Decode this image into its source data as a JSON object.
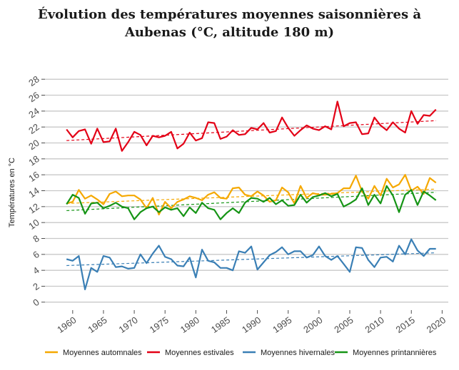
{
  "chart_data": {
    "type": "line",
    "title": "Évolution des températures moyennes saisonnières à Aubenas (°C, altitude 180 m)",
    "title_line1": "Évolution des températures moyennes saisonnières à",
    "title_line2": "Aubenas (°C, altitude 180 m)",
    "ylabel": "Températures en °C",
    "xlabel": "",
    "xlim": [
      1955.5,
      2021
    ],
    "ylim": [
      -1,
      29
    ],
    "xticks": [
      1960,
      1965,
      1970,
      1975,
      1980,
      1985,
      1990,
      1995,
      2000,
      2005,
      2010,
      2015,
      2020
    ],
    "yticks": [
      0,
      2,
      4,
      6,
      8,
      10,
      12,
      14,
      16,
      18,
      20,
      22,
      24,
      26,
      28
    ],
    "grid": "horizontal",
    "legend_position": "bottom",
    "x": [
      1959,
      1960,
      1961,
      1962,
      1963,
      1964,
      1965,
      1966,
      1967,
      1968,
      1969,
      1970,
      1971,
      1972,
      1973,
      1974,
      1975,
      1976,
      1977,
      1978,
      1979,
      1980,
      1981,
      1982,
      1983,
      1984,
      1985,
      1986,
      1987,
      1988,
      1989,
      1990,
      1991,
      1992,
      1993,
      1994,
      1995,
      1996,
      1997,
      1998,
      1999,
      2000,
      2001,
      2002,
      2003,
      2004,
      2005,
      2006,
      2007,
      2008,
      2009,
      2010,
      2011,
      2012,
      2013,
      2014,
      2015,
      2016,
      2017,
      2018,
      2019
    ],
    "series": [
      {
        "name": "Moyennes automnales",
        "color": "#f5a800",
        "values": [
          12.4,
          12.6,
          14.1,
          13.0,
          13.4,
          12.9,
          12.3,
          13.6,
          13.9,
          13.3,
          13.4,
          13.4,
          12.9,
          11.8,
          13.1,
          11.0,
          12.6,
          11.8,
          12.6,
          12.9,
          13.3,
          13.1,
          12.8,
          13.5,
          13.8,
          13.1,
          13.0,
          14.3,
          14.4,
          13.5,
          13.3,
          13.9,
          13.4,
          12.6,
          12.8,
          14.4,
          13.8,
          12.4,
          14.6,
          13.1,
          13.7,
          13.5,
          13.5,
          13.6,
          13.7,
          14.3,
          14.3,
          15.9,
          13.9,
          13.0,
          14.6,
          13.4,
          15.5,
          14.4,
          14.8,
          16.0,
          14.0,
          14.5,
          13.6,
          15.6,
          15.0
        ],
        "trend": [
          12.4,
          14.2
        ]
      },
      {
        "name": "Moyennes estivales",
        "color": "#e30016",
        "values": [
          21.7,
          20.7,
          21.5,
          21.7,
          19.9,
          21.8,
          20.1,
          20.2,
          21.8,
          19.0,
          20.1,
          21.4,
          21.0,
          19.7,
          20.9,
          20.7,
          20.9,
          21.4,
          19.3,
          19.9,
          21.3,
          20.3,
          20.6,
          22.6,
          22.5,
          20.5,
          20.8,
          21.6,
          21.0,
          21.1,
          21.9,
          21.7,
          22.5,
          21.3,
          21.5,
          23.2,
          21.9,
          20.9,
          21.6,
          22.2,
          21.8,
          21.6,
          22.1,
          21.7,
          25.2,
          22.1,
          22.5,
          22.6,
          21.1,
          21.2,
          23.2,
          22.2,
          21.6,
          22.6,
          21.8,
          21.3,
          24.0,
          22.4,
          23.5,
          23.4,
          24.2
        ],
        "trend": [
          20.3,
          22.8
        ]
      },
      {
        "name": "Moyennes hivernales",
        "color": "#3a7fb5",
        "values": [
          5.4,
          5.2,
          5.8,
          1.6,
          4.3,
          3.8,
          5.8,
          5.6,
          4.4,
          4.5,
          4.2,
          4.3,
          6.0,
          4.9,
          6.1,
          7.1,
          5.7,
          5.4,
          4.6,
          4.5,
          5.6,
          3.1,
          6.6,
          5.2,
          5.0,
          4.3,
          4.3,
          4.0,
          6.4,
          6.2,
          7.0,
          4.1,
          5.0,
          5.9,
          6.3,
          6.9,
          6.0,
          6.4,
          6.4,
          5.6,
          5.9,
          7.0,
          5.8,
          5.3,
          5.8,
          4.8,
          3.8,
          6.9,
          6.8,
          5.3,
          4.4,
          5.6,
          5.7,
          5.1,
          7.1,
          6.0,
          7.9,
          6.5,
          5.8,
          6.7,
          6.7
        ],
        "trend": [
          4.6,
          6.2
        ]
      },
      {
        "name": "Moyennes printannières",
        "color": "#159415",
        "values": [
          12.3,
          13.5,
          13.1,
          11.1,
          12.4,
          12.5,
          11.8,
          12.1,
          12.5,
          12.0,
          11.8,
          10.4,
          11.3,
          11.8,
          12.0,
          11.3,
          11.9,
          11.6,
          11.8,
          10.8,
          11.9,
          11.2,
          12.5,
          11.8,
          11.6,
          10.4,
          11.2,
          11.8,
          11.2,
          12.5,
          13.1,
          13.0,
          12.6,
          13.1,
          12.3,
          12.8,
          12.1,
          12.2,
          13.5,
          12.5,
          13.2,
          13.4,
          13.7,
          13.3,
          13.6,
          12.0,
          12.4,
          12.9,
          14.3,
          12.2,
          13.5,
          12.4,
          14.6,
          13.4,
          11.3,
          13.5,
          14.1,
          12.2,
          13.9,
          13.4,
          12.8
        ],
        "trend": [
          11.5,
          13.8
        ]
      }
    ]
  }
}
